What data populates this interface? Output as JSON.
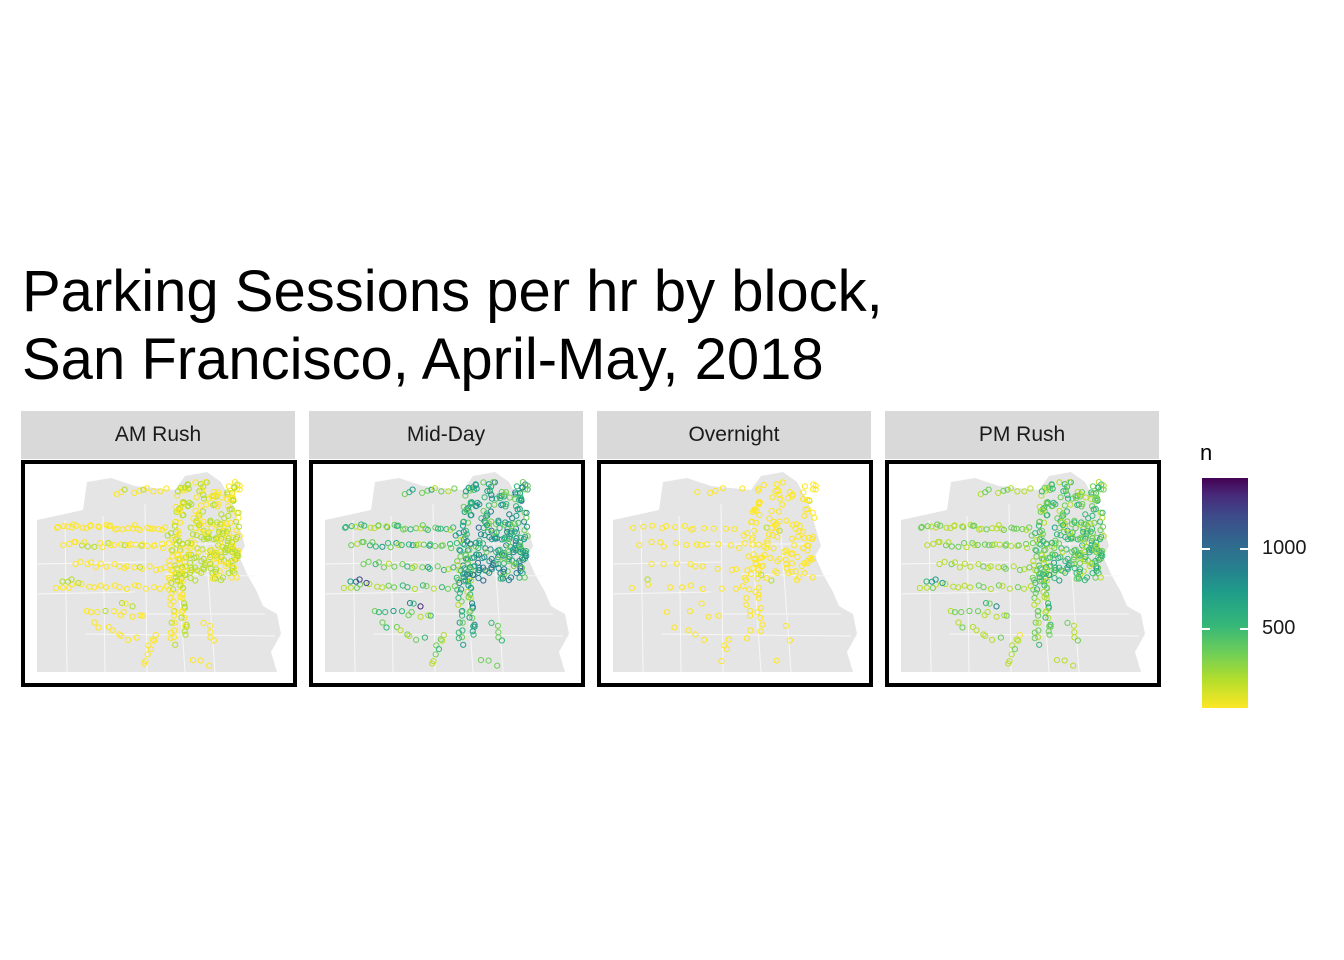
{
  "title": {
    "line1": "Parking Sessions per hr by block,",
    "line2": "San Francisco, April-May, 2018"
  },
  "panels": [
    {
      "label": "AM Rush",
      "intensity": 0.08
    },
    {
      "label": "Mid-Day",
      "intensity": 0.55
    },
    {
      "label": "Overnight",
      "intensity": 0.05
    },
    {
      "label": "PM Rush",
      "intensity": 0.35
    }
  ],
  "legend": {
    "title": "n",
    "ticks": [
      "1000",
      "500"
    ],
    "tick_values": [
      1000,
      500
    ],
    "range": [
      0,
      1400
    ]
  },
  "colors": {
    "land": "#e5e5e5",
    "district_lines": "#f7f7f7",
    "strip_bg": "#d9d9d9",
    "low": "#fde725",
    "high": "#440154"
  }
}
